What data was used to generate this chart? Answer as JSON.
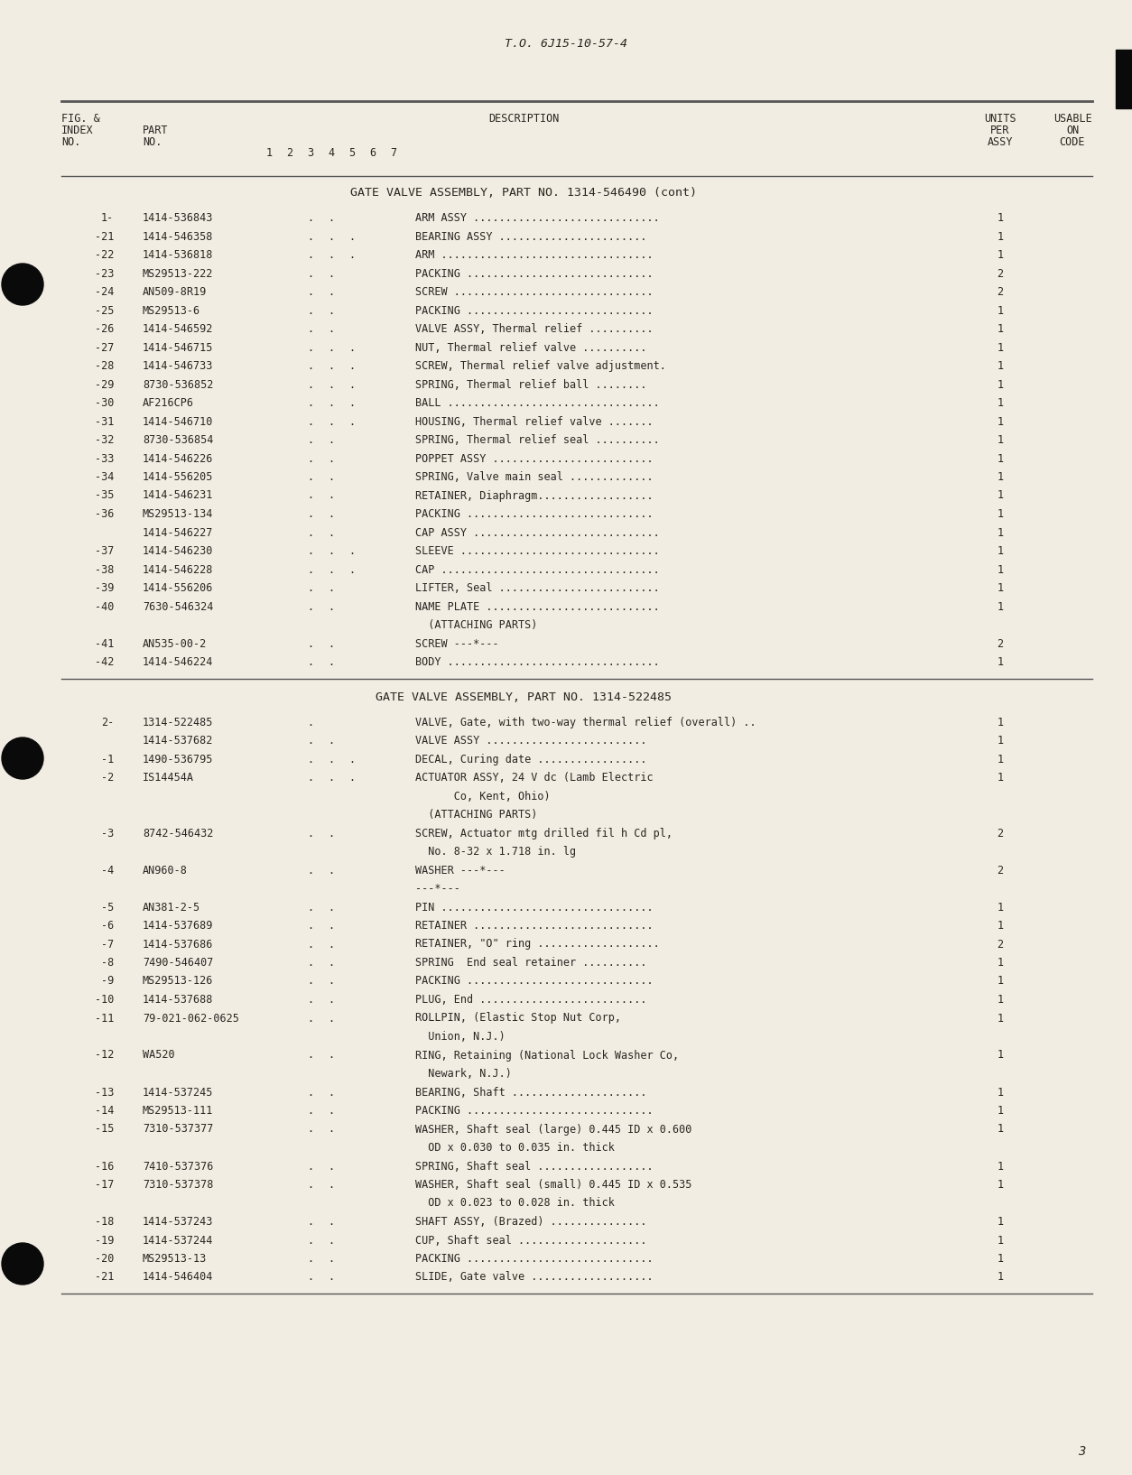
{
  "page_title": "T.O. 6J15-10-57-4",
  "page_number": "3",
  "bg_color": "#f2ede3",
  "text_color": "#2a2520",
  "section1_title": "GATE VALVE ASSEMBLY, PART NO. 1314-546490 (cont)",
  "section2_title": "GATE VALVE ASSEMBLY, PART NO. 1314-522485",
  "section1_rows": [
    [
      "1-",
      "1414-536843",
      2,
      "ARM ASSY .............................",
      "1"
    ],
    [
      "-21",
      "1414-546358",
      3,
      "BEARING ASSY .......................",
      "1"
    ],
    [
      "-22",
      "1414-536818",
      3,
      "ARM .................................",
      "1"
    ],
    [
      "-23",
      "MS29513-222",
      2,
      "PACKING .............................",
      "2"
    ],
    [
      "-24",
      "AN509-8R19",
      2,
      "SCREW ...............................",
      "2"
    ],
    [
      "-25",
      "MS29513-6",
      2,
      "PACKING .............................",
      "1"
    ],
    [
      "-26",
      "1414-546592",
      2,
      "VALVE ASSY, Thermal relief ..........",
      "1"
    ],
    [
      "-27",
      "1414-546715",
      3,
      "NUT, Thermal relief valve ..........",
      "1"
    ],
    [
      "-28",
      "1414-546733",
      3,
      "SCREW, Thermal relief valve adjustment.",
      "1"
    ],
    [
      "-29",
      "8730-536852",
      3,
      "SPRING, Thermal relief ball ........",
      "1"
    ],
    [
      "-30",
      "AF216CP6",
      3,
      "BALL .................................",
      "1"
    ],
    [
      "-31",
      "1414-546710",
      3,
      "HOUSING, Thermal relief valve .......",
      "1"
    ],
    [
      "-32",
      "8730-536854",
      2,
      "SPRING, Thermal relief seal ..........",
      "1"
    ],
    [
      "-33",
      "1414-546226",
      2,
      "POPPET ASSY .........................",
      "1"
    ],
    [
      "-34",
      "1414-556205",
      2,
      "SPRING, Valve main seal .............",
      "1"
    ],
    [
      "-35",
      "1414-546231",
      2,
      "RETAINER, Diaphragm..................",
      "1"
    ],
    [
      "-36",
      "MS29513-134",
      2,
      "PACKING .............................",
      "1"
    ],
    [
      "",
      "1414-546227",
      2,
      "CAP ASSY .............................",
      "1"
    ],
    [
      "-37",
      "1414-546230",
      3,
      "SLEEVE ...............................",
      "1"
    ],
    [
      "-38",
      "1414-546228",
      3,
      "CAP ..................................",
      "1"
    ],
    [
      "-39",
      "1414-556206",
      2,
      "LIFTER, Seal .........................",
      "1"
    ],
    [
      "-40",
      "7630-546324",
      2,
      "NAME PLATE ...........................",
      "1"
    ],
    [
      "",
      "",
      0,
      "  (ATTACHING PARTS)",
      ""
    ],
    [
      "-41",
      "AN535-00-2",
      2,
      "SCREW ---*---",
      "2"
    ],
    [
      "-42",
      "1414-546224",
      2,
      "BODY .................................",
      "1"
    ]
  ],
  "section2_rows": [
    [
      "2-",
      "1314-522485",
      1,
      "VALVE, Gate, with two-way thermal relief (overall) ..",
      "1"
    ],
    [
      "",
      "1414-537682",
      2,
      "VALVE ASSY .........................",
      "1"
    ],
    [
      "-1",
      "1490-536795",
      3,
      "DECAL, Curing date .................",
      "1"
    ],
    [
      "-2",
      "IS14454A",
      3,
      "ACTUATOR ASSY, 24 V dc (Lamb Electric",
      "1"
    ],
    [
      "",
      "",
      0,
      "      Co, Kent, Ohio)",
      ""
    ],
    [
      "",
      "",
      0,
      "  (ATTACHING PARTS)",
      ""
    ],
    [
      "-3",
      "8742-546432",
      2,
      "SCREW, Actuator mtg drilled fil h Cd pl,",
      "2"
    ],
    [
      "",
      "",
      0,
      "  No. 8-32 x 1.718 in. lg",
      ""
    ],
    [
      "-4",
      "AN960-8",
      2,
      "WASHER ---*---",
      "2"
    ],
    [
      "",
      "",
      0,
      "---*---",
      ""
    ],
    [
      "-5",
      "AN381-2-5",
      2,
      "PIN .................................",
      "1"
    ],
    [
      "-6",
      "1414-537689",
      2,
      "RETAINER ............................",
      "1"
    ],
    [
      "-7",
      "1414-537686",
      2,
      "RETAINER, \"O\" ring ...................",
      "2"
    ],
    [
      "-8",
      "7490-546407",
      2,
      "SPRING  End seal retainer ..........",
      "1"
    ],
    [
      "-9",
      "MS29513-126",
      2,
      "PACKING .............................",
      "1"
    ],
    [
      "-10",
      "1414-537688",
      2,
      "PLUG, End ..........................",
      "1"
    ],
    [
      "-11",
      "79-021-062-0625",
      2,
      "ROLLPIN, (Elastic Stop Nut Corp,",
      "1"
    ],
    [
      "",
      "",
      0,
      "  Union, N.J.)",
      ""
    ],
    [
      "-12",
      "WA520",
      2,
      "RING, Retaining (National Lock Washer Co,",
      "1"
    ],
    [
      "",
      "",
      0,
      "  Newark, N.J.)",
      ""
    ],
    [
      "-13",
      "1414-537245",
      2,
      "BEARING, Shaft .....................",
      "1"
    ],
    [
      "-14",
      "MS29513-111",
      2,
      "PACKING .............................",
      "1"
    ],
    [
      "-15",
      "7310-537377",
      2,
      "WASHER, Shaft seal (large) 0.445 ID x 0.600",
      "1"
    ],
    [
      "",
      "",
      0,
      "  OD x 0.030 to 0.035 in. thick",
      ""
    ],
    [
      "-16",
      "7410-537376",
      2,
      "SPRING, Shaft seal ..................",
      "1"
    ],
    [
      "-17",
      "7310-537378",
      2,
      "WASHER, Shaft seal (small) 0.445 ID x 0.535",
      "1"
    ],
    [
      "",
      "",
      0,
      "  OD x 0.023 to 0.028 in. thick",
      ""
    ],
    [
      "-18",
      "1414-537243",
      2,
      "SHAFT ASSY, (Brazed) ...............",
      "1"
    ],
    [
      "-19",
      "1414-537244",
      2,
      "CUP, Shaft seal ....................",
      "1"
    ],
    [
      "-20",
      "MS29513-13",
      2,
      "PACKING .............................",
      "1"
    ],
    [
      "-21",
      "1414-546404",
      2,
      "SLIDE, Gate valve ...................",
      "1"
    ]
  ]
}
